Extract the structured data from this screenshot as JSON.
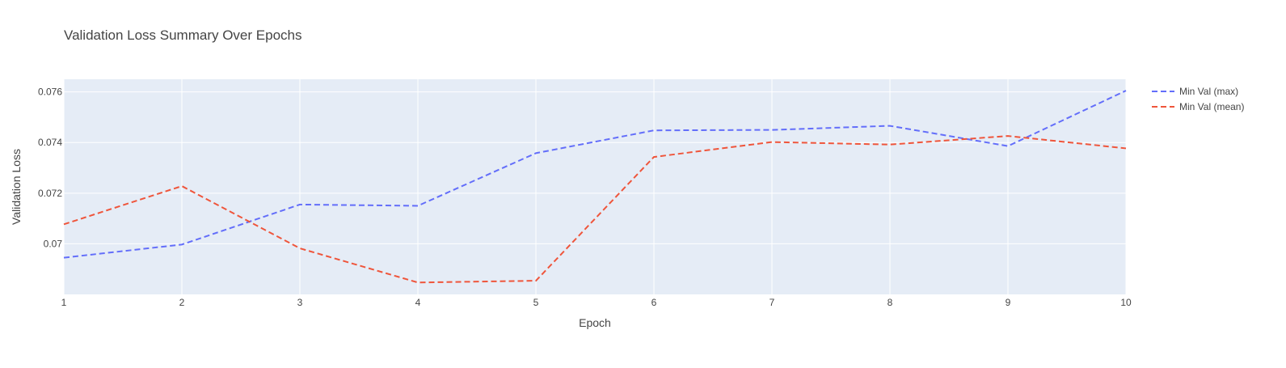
{
  "chart_data": {
    "type": "line",
    "title": "Validation Loss Summary Over Epochs",
    "xlabel": "Epoch",
    "ylabel": "Validation Loss",
    "x": [
      1,
      2,
      3,
      4,
      5,
      6,
      7,
      8,
      9,
      10
    ],
    "xlim": [
      1,
      10
    ],
    "ylim": [
      0.068,
      0.0765
    ],
    "x_ticks": [
      1,
      2,
      3,
      4,
      5,
      6,
      7,
      8,
      9,
      10
    ],
    "y_ticks": [
      0.07,
      0.072,
      0.074,
      0.076
    ],
    "y_tick_labels": [
      "0.07",
      "0.072",
      "0.074",
      "0.076"
    ],
    "grid": true,
    "legend_position": "top-right",
    "plot_background": "#e5ecf6",
    "series": [
      {
        "name": "Min Val (max)",
        "color": "#636efa",
        "dash": "dashed",
        "values": [
          0.06945,
          0.06997,
          0.07155,
          0.0715,
          0.07358,
          0.07448,
          0.0745,
          0.07466,
          0.07386,
          0.07605
        ]
      },
      {
        "name": "Min Val (mean)",
        "color": "#ef553b",
        "dash": "dashed",
        "values": [
          0.07077,
          0.07228,
          0.06982,
          0.06847,
          0.06854,
          0.07343,
          0.07402,
          0.07392,
          0.07426,
          0.07377
        ]
      }
    ]
  }
}
